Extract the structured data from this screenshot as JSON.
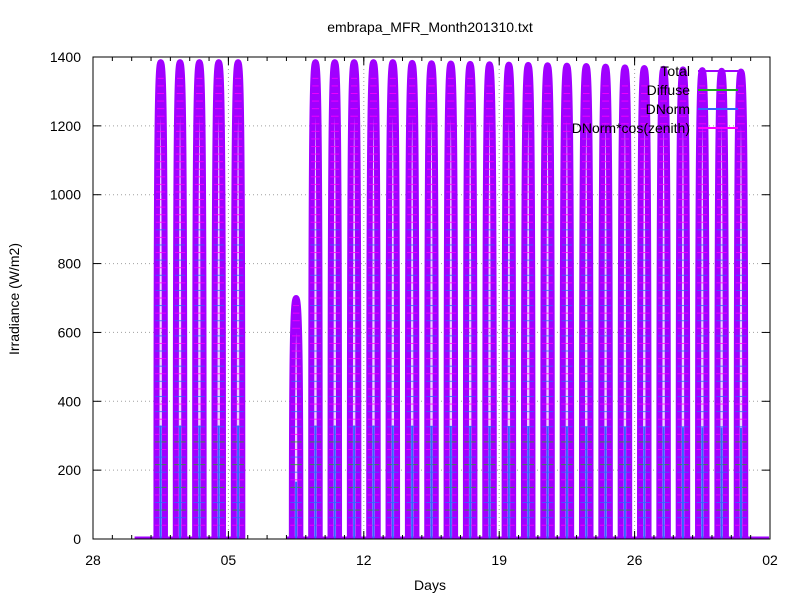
{
  "chart_data": {
    "type": "line",
    "title": "embrapa_MFR_Month201310.txt",
    "xlabel": "Days",
    "ylabel": "Irradiance (W/m2)",
    "xlim": [
      "2013-09-28",
      "2013-11-02"
    ],
    "ylim": [
      0,
      1400
    ],
    "x_ticks": [
      "28",
      "05",
      "12",
      "19",
      "26",
      "02"
    ],
    "x_tick_dates": [
      "2013-09-28",
      "2013-10-05",
      "2013-10-12",
      "2013-10-19",
      "2013-10-26",
      "2013-11-02"
    ],
    "y_ticks": [
      0,
      200,
      400,
      600,
      800,
      1000,
      1200,
      1400
    ],
    "grid": true,
    "legend_position": "top-right",
    "series": [
      {
        "name": "Total",
        "color": "#a000ff"
      },
      {
        "name": "Diffuse",
        "color": "#22aa22"
      },
      {
        "name": "DNorm",
        "color": "#3366ff"
      },
      {
        "name": "DNorm*cos(zenith)",
        "color": "#ff00ff"
      }
    ],
    "data_gap": [
      "2013-10-05",
      "2013-10-07"
    ],
    "daily_peaks_total": [
      {
        "date": "2013-10-01",
        "value": 1385
      },
      {
        "date": "2013-10-02",
        "value": 1385
      },
      {
        "date": "2013-10-03",
        "value": 1385
      },
      {
        "date": "2013-10-04",
        "value": 1385
      },
      {
        "date": "2013-10-05",
        "value": 1385
      },
      {
        "date": "2013-10-08",
        "value": 700
      },
      {
        "date": "2013-10-09",
        "value": 1385
      },
      {
        "date": "2013-10-10",
        "value": 1385
      },
      {
        "date": "2013-10-11",
        "value": 1385
      },
      {
        "date": "2013-10-12",
        "value": 1385
      },
      {
        "date": "2013-10-13",
        "value": 1385
      },
      {
        "date": "2013-10-14",
        "value": 1383
      },
      {
        "date": "2013-10-15",
        "value": 1382
      },
      {
        "date": "2013-10-16",
        "value": 1381
      },
      {
        "date": "2013-10-17",
        "value": 1380
      },
      {
        "date": "2013-10-18",
        "value": 1379
      },
      {
        "date": "2013-10-19",
        "value": 1378
      },
      {
        "date": "2013-10-20",
        "value": 1377
      },
      {
        "date": "2013-10-21",
        "value": 1376
      },
      {
        "date": "2013-10-22",
        "value": 1375
      },
      {
        "date": "2013-10-23",
        "value": 1374
      },
      {
        "date": "2013-10-24",
        "value": 1372
      },
      {
        "date": "2013-10-25",
        "value": 1370
      },
      {
        "date": "2013-10-26",
        "value": 1368
      },
      {
        "date": "2013-10-27",
        "value": 1366
      },
      {
        "date": "2013-10-28",
        "value": 1364
      },
      {
        "date": "2013-10-29",
        "value": 1362
      },
      {
        "date": "2013-10-30",
        "value": 1360
      },
      {
        "date": "2013-10-31",
        "value": 1358
      }
    ]
  }
}
